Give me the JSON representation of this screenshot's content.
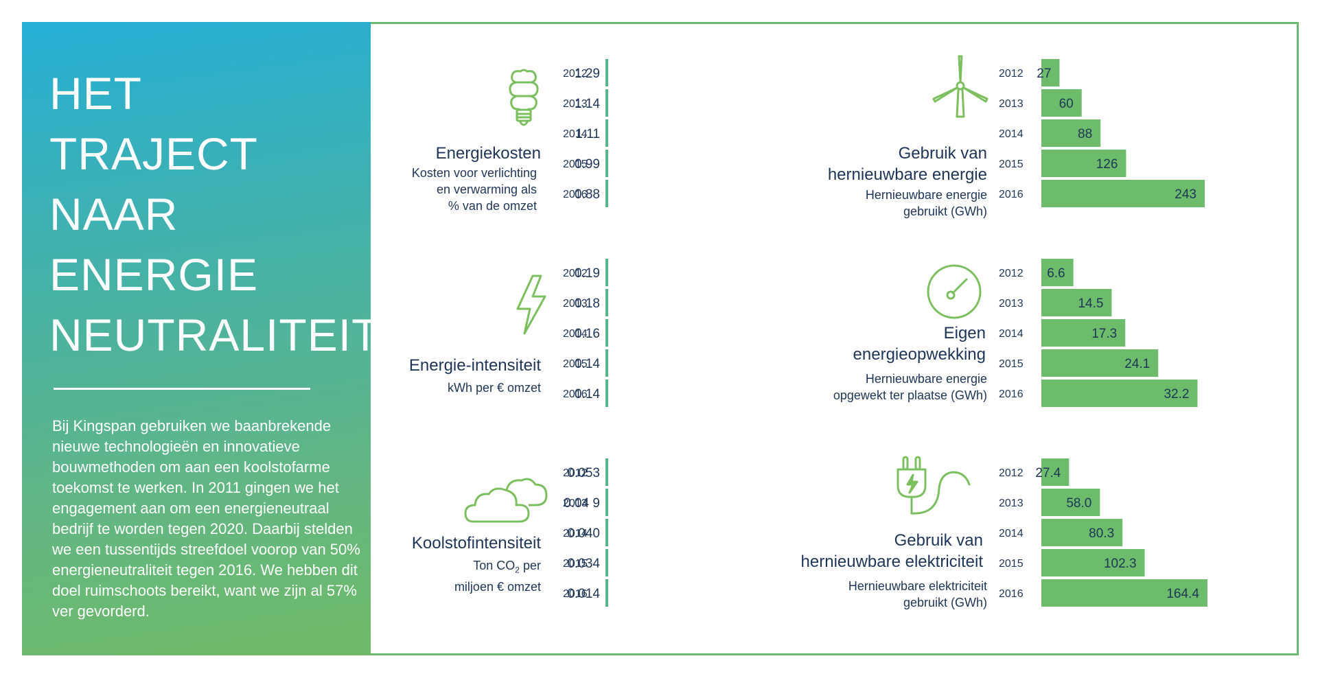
{
  "headline": {
    "lines": [
      "HET",
      "TRAJECT",
      "NAAR",
      "ENERGIE",
      "NEUTRALITEIT"
    ]
  },
  "intro": {
    "text": "Bij Kingspan gebruiken we baanbrekende nieuwe technologieën en innovatieve bouwmethoden om aan een koolstofarme toekomst te werken. In 2011 gingen we het engagement aan om een energieneutraal bedrijf te worden tegen 2020. Daarbij stelden we een tussentijds streefdoel voorop van 50% energieneutraliteit tegen 2016. We hebben dit doel ruimschoots bereikt, want we zijn al 57% ver gevorderd."
  },
  "colors": {
    "teal_bar": "#58b58a",
    "green_bar": "#6cbc6c",
    "text_dark": "#1e3557",
    "icon_green": "#7bbf5e",
    "frame": "#6ab96f"
  },
  "panels": {
    "energiekosten": {
      "title": "Energiekosten",
      "subtitle_lines": [
        "Kosten voor verlichting",
        "en verwarming als",
        "% van de omzet"
      ],
      "icon": "light-bulb-icon"
    },
    "hernieuwbare_energie": {
      "title_lines": [
        "Gebruik van",
        "hernieuwbare energie"
      ],
      "subtitle_lines": [
        "Hernieuwbare energie",
        "gebruikt (GWh)"
      ],
      "icon": "wind-turbine-icon"
    },
    "intensiteit": {
      "title": "Energie-intensiteit",
      "subtitle_lines": [
        "kWh per € omzet"
      ],
      "icon": "lightning-icon"
    },
    "opwekking": {
      "title_lines": [
        "Eigen",
        "energieopwekking"
      ],
      "subtitle_lines": [
        "Hernieuwbare energie",
        "opgewekt ter plaatse (GWh)"
      ],
      "icon": "gauge-icon"
    },
    "koolstof": {
      "title": "Koolstofintensiteit",
      "subtitle_line1": "Ton CO",
      "subtitle_sub": "2",
      "subtitle_line1_end": " per",
      "subtitle_line2": "miljoen € omzet",
      "icon": "cloud-icon"
    },
    "elektriciteit": {
      "title_lines": [
        "Gebruik van",
        "hernieuwbare elektriciteit"
      ],
      "subtitle_lines": [
        "Hernieuwbare elektriciteit",
        "gebruikt (GWh)"
      ],
      "icon": "electric-plug-icon"
    }
  },
  "chart_data": [
    {
      "id": "energiekosten",
      "type": "bar",
      "orientation": "horizontal",
      "categories": [
        "2012",
        "2013",
        "2014",
        "2015",
        "2016"
      ],
      "values": [
        1.29,
        1.14,
        1.11,
        0.99,
        0.88
      ],
      "labels": [
        "1.29",
        "1.14",
        "1.11",
        "0.99",
        "0.88"
      ],
      "color": "#58b58a"
    },
    {
      "id": "hernieuwbare_energie",
      "type": "bar",
      "orientation": "horizontal",
      "categories": [
        "2012",
        "2013",
        "2014",
        "2015",
        "2016"
      ],
      "values": [
        27,
        60,
        88,
        126,
        243
      ],
      "labels": [
        "27",
        "60",
        "88",
        "126",
        "243"
      ],
      "color": "#6cbc6c"
    },
    {
      "id": "intensiteit",
      "type": "bar",
      "orientation": "horizontal",
      "categories": [
        "2012",
        "2013",
        "2014",
        "2015",
        "2016"
      ],
      "values": [
        0.19,
        0.18,
        0.16,
        0.14,
        0.14
      ],
      "labels": [
        "0.19",
        "0.18",
        "0.16",
        "0.14",
        "0.14"
      ],
      "color": "#58b58a"
    },
    {
      "id": "opwekking",
      "type": "bar",
      "orientation": "horizontal",
      "categories": [
        "2012",
        "2013",
        "2014",
        "2015",
        "2016"
      ],
      "values": [
        6.6,
        14.5,
        17.3,
        24.1,
        32.2
      ],
      "labels": [
        "6.6",
        "14.5",
        "17.3",
        "24.1",
        "32.2"
      ],
      "color": "#6cbc6c"
    },
    {
      "id": "koolstof",
      "type": "bar",
      "orientation": "horizontal",
      "categories": [
        "2012",
        "2013",
        "2014",
        "2015",
        "2016"
      ],
      "values": [
        0.053,
        0.049,
        0.04,
        0.034,
        0.014
      ],
      "labels": [
        "0.053",
        "0.04 9",
        "0.040",
        "0.034",
        "0.014"
      ],
      "color": "#58b58a"
    },
    {
      "id": "elektriciteit",
      "type": "bar",
      "orientation": "horizontal",
      "categories": [
        "2012",
        "2013",
        "2014",
        "2015",
        "2016"
      ],
      "values": [
        27.4,
        58.0,
        80.3,
        102.3,
        164.4
      ],
      "labels": [
        "27.4",
        "58.0",
        "80.3",
        "102.3",
        "164.4"
      ],
      "color": "#6cbc6c"
    }
  ]
}
